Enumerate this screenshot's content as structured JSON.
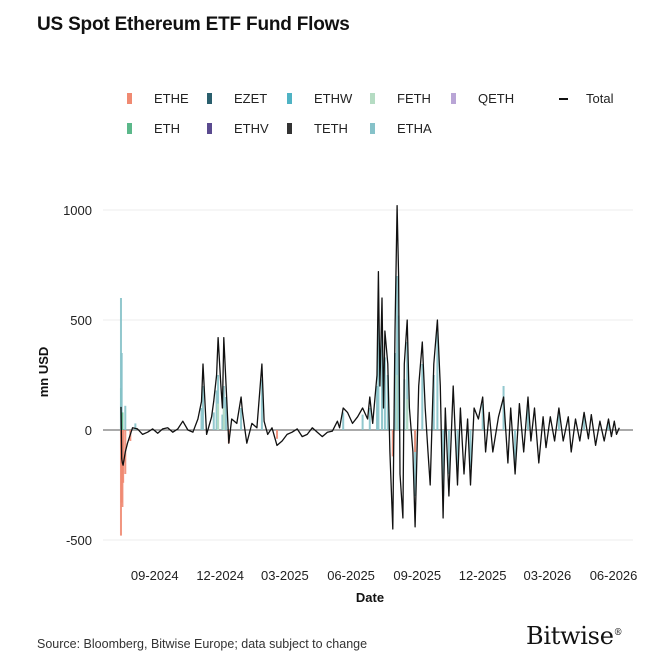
{
  "title": "US Spot Ethereum ETF Fund Flows",
  "footer": "Source: Bloomberg, Bitwise Europe; data subject to change",
  "brand": "Bitwise",
  "chart_data": {
    "type": "bar",
    "title": "US Spot Ethereum ETF Fund Flows",
    "xlabel": "Date",
    "ylabel": "mn USD",
    "ylim": [
      -500,
      1000
    ],
    "yticks": [
      -500,
      0,
      500,
      1000
    ],
    "xticks": [
      "09-2024",
      "12-2024",
      "03-2025",
      "06-2025",
      "09-2025",
      "12-2025",
      "03-2026",
      "06-2026"
    ],
    "grid": true,
    "legend_position": "top",
    "stacked": true,
    "series": [
      {
        "name": "ETHE",
        "color": "#f08a72"
      },
      {
        "name": "EZET",
        "color": "#2a5f6d"
      },
      {
        "name": "ETHW",
        "color": "#4fb3c4"
      },
      {
        "name": "FETH",
        "color": "#b5dcc3"
      },
      {
        "name": "QETH",
        "color": "#b9a5d6"
      },
      {
        "name": "ETH",
        "color": "#5bb88a"
      },
      {
        "name": "ETHV",
        "color": "#5a4a8f"
      },
      {
        "name": "TETH",
        "color": "#333333"
      },
      {
        "name": "ETHA",
        "color": "#86c2c9"
      },
      {
        "name": "Total",
        "color": "#111111",
        "kind": "line"
      }
    ],
    "total_flows": [
      [
        "2024-07-23",
        105
      ],
      [
        "2024-07-24",
        -130
      ],
      [
        "2024-07-25",
        -150
      ],
      [
        "2024-07-26",
        -160
      ],
      [
        "2024-07-29",
        -100
      ],
      [
        "2024-08-01",
        -60
      ],
      [
        "2024-08-08",
        10
      ],
      [
        "2024-08-15",
        5
      ],
      [
        "2024-08-22",
        -20
      ],
      [
        "2024-08-29",
        -10
      ],
      [
        "2024-09-05",
        5
      ],
      [
        "2024-09-12",
        -15
      ],
      [
        "2024-09-19",
        5
      ],
      [
        "2024-09-26",
        10
      ],
      [
        "2024-10-03",
        -10
      ],
      [
        "2024-10-10",
        5
      ],
      [
        "2024-10-17",
        40
      ],
      [
        "2024-10-24",
        0
      ],
      [
        "2024-10-31",
        -10
      ],
      [
        "2024-11-07",
        50
      ],
      [
        "2024-11-12",
        130
      ],
      [
        "2024-11-14",
        300
      ],
      [
        "2024-11-19",
        -20
      ],
      [
        "2024-11-26",
        60
      ],
      [
        "2024-11-29",
        130
      ],
      [
        "2024-12-03",
        250
      ],
      [
        "2024-12-05",
        420
      ],
      [
        "2024-12-09",
        200
      ],
      [
        "2024-12-11",
        100
      ],
      [
        "2024-12-13",
        420
      ],
      [
        "2024-12-16",
        210
      ],
      [
        "2024-12-20",
        -60
      ],
      [
        "2024-12-24",
        50
      ],
      [
        "2024-12-31",
        30
      ],
      [
        "2025-01-06",
        150
      ],
      [
        "2025-01-08",
        80
      ],
      [
        "2025-01-14",
        -60
      ],
      [
        "2025-01-21",
        30
      ],
      [
        "2025-01-28",
        10
      ],
      [
        "2025-02-04",
        300
      ],
      [
        "2025-02-07",
        40
      ],
      [
        "2025-02-12",
        -20
      ],
      [
        "2025-02-18",
        10
      ],
      [
        "2025-02-25",
        -70
      ],
      [
        "2025-03-04",
        -50
      ],
      [
        "2025-03-11",
        -20
      ],
      [
        "2025-03-18",
        -10
      ],
      [
        "2025-03-25",
        5
      ],
      [
        "2025-04-01",
        -30
      ],
      [
        "2025-04-08",
        -20
      ],
      [
        "2025-04-15",
        10
      ],
      [
        "2025-04-22",
        -10
      ],
      [
        "2025-04-29",
        -30
      ],
      [
        "2025-05-06",
        -10
      ],
      [
        "2025-05-13",
        -5
      ],
      [
        "2025-05-20",
        40
      ],
      [
        "2025-05-23",
        10
      ],
      [
        "2025-05-28",
        100
      ],
      [
        "2025-06-03",
        80
      ],
      [
        "2025-06-10",
        30
      ],
      [
        "2025-06-17",
        60
      ],
      [
        "2025-06-24",
        100
      ],
      [
        "2025-07-01",
        50
      ],
      [
        "2025-07-04",
        150
      ],
      [
        "2025-07-08",
        30
      ],
      [
        "2025-07-14",
        250
      ],
      [
        "2025-07-16",
        720
      ],
      [
        "2025-07-18",
        200
      ],
      [
        "2025-07-21",
        600
      ],
      [
        "2025-07-23",
        100
      ],
      [
        "2025-07-25",
        450
      ],
      [
        "2025-07-29",
        300
      ],
      [
        "2025-08-01",
        -100
      ],
      [
        "2025-08-05",
        -450
      ],
      [
        "2025-08-08",
        450
      ],
      [
        "2025-08-11",
        1020
      ],
      [
        "2025-08-13",
        700
      ],
      [
        "2025-08-15",
        -200
      ],
      [
        "2025-08-19",
        -400
      ],
      [
        "2025-08-21",
        300
      ],
      [
        "2025-08-25",
        500
      ],
      [
        "2025-08-28",
        100
      ],
      [
        "2025-09-02",
        -100
      ],
      [
        "2025-09-05",
        -440
      ],
      [
        "2025-09-10",
        200
      ],
      [
        "2025-09-15",
        400
      ],
      [
        "2025-09-19",
        100
      ],
      [
        "2025-09-23",
        -100
      ],
      [
        "2025-09-26",
        -250
      ],
      [
        "2025-10-01",
        300
      ],
      [
        "2025-10-06",
        500
      ],
      [
        "2025-10-10",
        200
      ],
      [
        "2025-10-14",
        -400
      ],
      [
        "2025-10-17",
        100
      ],
      [
        "2025-10-22",
        -300
      ],
      [
        "2025-10-28",
        200
      ],
      [
        "2025-11-03",
        -250
      ],
      [
        "2025-11-07",
        100
      ],
      [
        "2025-11-12",
        -200
      ],
      [
        "2025-11-17",
        50
      ],
      [
        "2025-11-21",
        -250
      ],
      [
        "2025-11-26",
        100
      ],
      [
        "2025-12-02",
        50
      ],
      [
        "2025-12-08",
        150
      ],
      [
        "2025-12-12",
        -100
      ],
      [
        "2025-12-17",
        80
      ],
      [
        "2025-12-22",
        -100
      ],
      [
        "2025-12-30",
        60
      ],
      [
        "2026-01-06",
        150
      ],
      [
        "2026-01-12",
        -150
      ],
      [
        "2026-01-16",
        100
      ],
      [
        "2026-01-22",
        -200
      ],
      [
        "2026-01-28",
        120
      ],
      [
        "2026-02-03",
        -100
      ],
      [
        "2026-02-09",
        150
      ],
      [
        "2026-02-13",
        -50
      ],
      [
        "2026-02-18",
        100
      ],
      [
        "2026-02-24",
        -150
      ],
      [
        "2026-03-02",
        60
      ],
      [
        "2026-03-06",
        -80
      ],
      [
        "2026-03-12",
        60
      ],
      [
        "2026-03-18",
        -50
      ],
      [
        "2026-03-24",
        100
      ],
      [
        "2026-03-30",
        -50
      ],
      [
        "2026-04-06",
        60
      ],
      [
        "2026-04-10",
        -100
      ],
      [
        "2026-04-16",
        50
      ],
      [
        "2026-04-22",
        -50
      ],
      [
        "2026-04-28",
        80
      ],
      [
        "2026-05-04",
        -40
      ],
      [
        "2026-05-08",
        70
      ],
      [
        "2026-05-14",
        -70
      ],
      [
        "2026-05-20",
        40
      ],
      [
        "2026-05-26",
        -50
      ],
      [
        "2026-06-01",
        50
      ],
      [
        "2026-06-05",
        -30
      ],
      [
        "2026-06-09",
        40
      ],
      [
        "2026-06-12",
        -20
      ],
      [
        "2026-06-16",
        10
      ]
    ],
    "component_bars": [
      [
        "2024-07-23",
        "ETH",
        190
      ],
      [
        "2024-07-23",
        "ETHA",
        600
      ],
      [
        "2024-07-23",
        "ETHE",
        -480
      ],
      [
        "2024-07-24",
        "ETHA",
        350
      ],
      [
        "2024-07-24",
        "ETHE",
        -330
      ],
      [
        "2024-07-25",
        "ETH",
        80
      ],
      [
        "2024-07-25",
        "ETHE",
        -350
      ],
      [
        "2024-07-26",
        "ETHE",
        -240
      ],
      [
        "2024-07-29",
        "ETHA",
        110
      ],
      [
        "2024-07-29",
        "ETHE",
        -200
      ],
      [
        "2024-08-05",
        "ETHE",
        -50
      ],
      [
        "2024-08-12",
        "ETHA",
        30
      ],
      [
        "2024-11-12",
        "ETHA",
        100
      ],
      [
        "2024-11-14",
        "ETHA",
        200
      ],
      [
        "2024-11-29",
        "ETHA",
        80
      ],
      [
        "2024-12-03",
        "ETHA",
        180
      ],
      [
        "2024-12-05",
        "ETHA",
        250
      ],
      [
        "2024-12-05",
        "FETH",
        120
      ],
      [
        "2024-12-11",
        "ETHA",
        70
      ],
      [
        "2024-12-13",
        "ETHA",
        200
      ],
      [
        "2024-12-13",
        "FETH",
        100
      ],
      [
        "2024-12-16",
        "ETHA",
        150
      ],
      [
        "2024-12-20",
        "ETHE",
        -60
      ],
      [
        "2025-01-06",
        "ETHA",
        100
      ],
      [
        "2025-02-04",
        "ETHA",
        230
      ],
      [
        "2025-02-25",
        "ETHE",
        -40
      ],
      [
        "2025-05-28",
        "ETHA",
        80
      ],
      [
        "2025-06-24",
        "ETHA",
        70
      ],
      [
        "2025-07-04",
        "ETHA",
        100
      ],
      [
        "2025-07-14",
        "ETHA",
        200
      ],
      [
        "2025-07-16",
        "ETHA",
        500
      ],
      [
        "2025-07-21",
        "ETHA",
        450
      ],
      [
        "2025-07-25",
        "ETHA",
        330
      ],
      [
        "2025-07-29",
        "ETHA",
        250
      ],
      [
        "2025-08-05",
        "ETHE",
        -120
      ],
      [
        "2025-08-08",
        "ETHA",
        350
      ],
      [
        "2025-08-11",
        "ETHA",
        700
      ],
      [
        "2025-08-11",
        "FETH",
        250
      ],
      [
        "2025-08-13",
        "ETHA",
        520
      ],
      [
        "2025-08-21",
        "ETHA",
        230
      ],
      [
        "2025-08-25",
        "ETHA",
        400
      ],
      [
        "2025-08-25",
        "FETH",
        140
      ],
      [
        "2025-09-05",
        "ETHA",
        -300
      ],
      [
        "2025-09-05",
        "ETHE",
        -100
      ],
      [
        "2025-09-15",
        "ETHA",
        300
      ],
      [
        "2025-10-01",
        "ETHA",
        250
      ],
      [
        "2025-10-06",
        "ETHA",
        450
      ],
      [
        "2025-10-14",
        "ETHA",
        -300
      ],
      [
        "2025-10-22",
        "ETHA",
        -200
      ],
      [
        "2025-11-03",
        "ETHA",
        -180
      ],
      [
        "2025-11-21",
        "ETHA",
        -170
      ],
      [
        "2025-12-08",
        "ETHA",
        120
      ],
      [
        "2026-01-06",
        "ETHA",
        200
      ],
      [
        "2026-01-22",
        "ETHA",
        -150
      ],
      [
        "2026-02-09",
        "ETHA",
        110
      ],
      [
        "2026-03-24",
        "ETHA",
        80
      ],
      [
        "2026-04-28",
        "ETHA",
        60
      ],
      [
        "2026-06-01",
        "ETHA",
        40
      ]
    ]
  }
}
